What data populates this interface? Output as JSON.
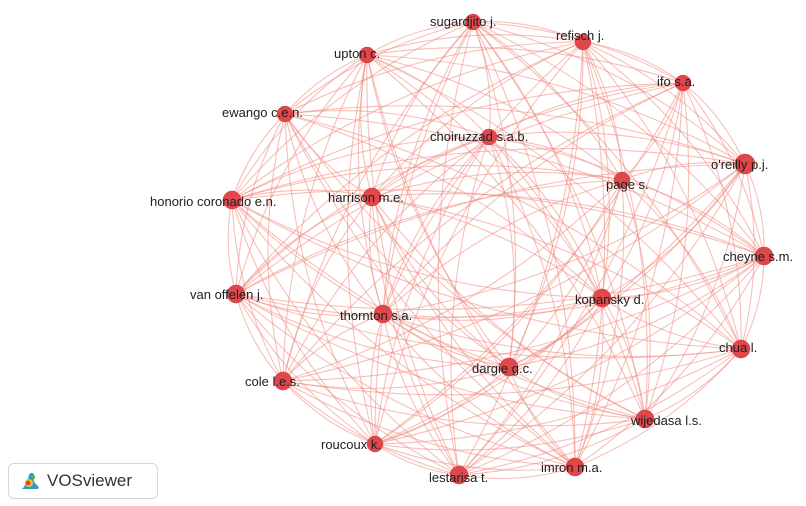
{
  "network": {
    "nodes": [
      {
        "id": "sugardjito",
        "label": "sugardjito j."
      },
      {
        "id": "refisch",
        "label": "refisch j."
      },
      {
        "id": "upton",
        "label": "upton c."
      },
      {
        "id": "ifo",
        "label": "ifo s.a."
      },
      {
        "id": "ewango",
        "label": "ewango c.e.n."
      },
      {
        "id": "choiruzzad",
        "label": "choiruzzad s.a.b."
      },
      {
        "id": "oreilly",
        "label": "o'reilly p.j."
      },
      {
        "id": "honorio",
        "label": "honorio coronado e.n."
      },
      {
        "id": "harrison",
        "label": "harrison m.e."
      },
      {
        "id": "page",
        "label": "page s."
      },
      {
        "id": "cheyne",
        "label": "cheyne s.m."
      },
      {
        "id": "vanoffelen",
        "label": "van offelen j."
      },
      {
        "id": "kopansky",
        "label": "kopansky d."
      },
      {
        "id": "thornton",
        "label": "thornton s.a."
      },
      {
        "id": "chua",
        "label": "chua l."
      },
      {
        "id": "dargie",
        "label": "dargie g.c."
      },
      {
        "id": "cole",
        "label": "cole l.e.s."
      },
      {
        "id": "wijedasa",
        "label": "wijedasa l.s."
      },
      {
        "id": "roucoux",
        "label": "roucoux k."
      },
      {
        "id": "imron",
        "label": "imron m.a."
      },
      {
        "id": "lestarisa",
        "label": "lestarisa t."
      }
    ],
    "node_color": "#e0474b",
    "edge_color": "#f08a80"
  },
  "branding": {
    "label": "VOSviewer"
  }
}
